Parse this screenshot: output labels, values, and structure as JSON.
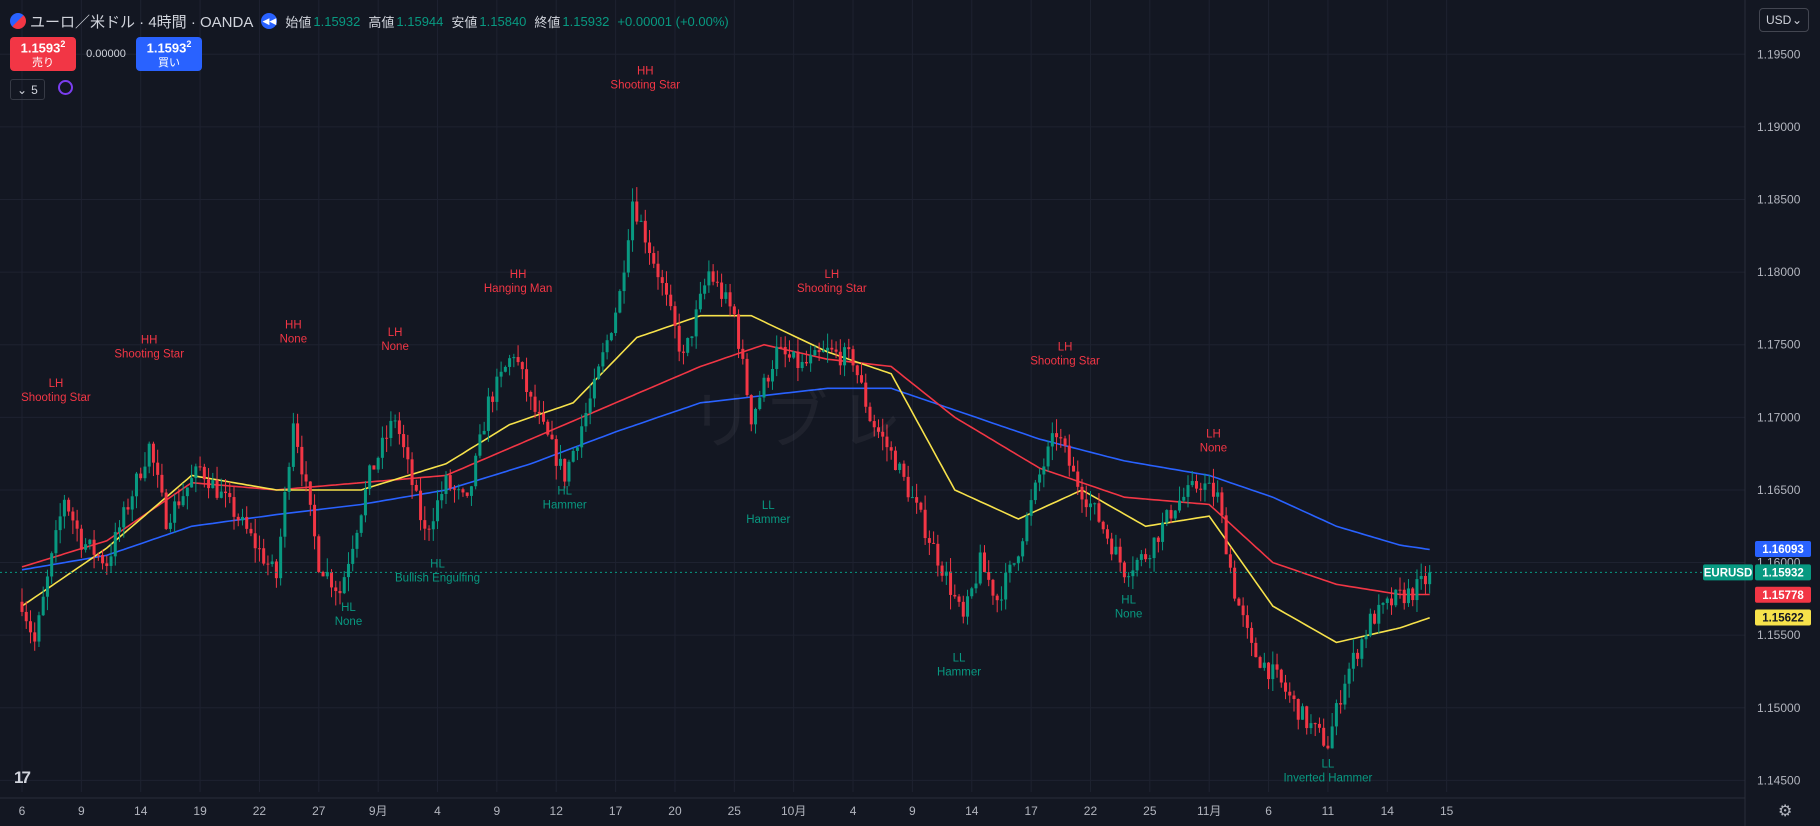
{
  "legend": {
    "title": "ユーロ／米ドル · 4時間 · OANDA",
    "open_label": "始値",
    "open": "1.15932",
    "high_label": "高値",
    "high": "1.15944",
    "low_label": "安値",
    "low": "1.15840",
    "close_label": "終値",
    "close": "1.15932",
    "change": "+0.00001 (+0.00%)"
  },
  "trade": {
    "sell_price": "1.1593",
    "sell_sup": "2",
    "sell_label": "売り",
    "spread": "0.00000",
    "buy_price": "1.1593",
    "buy_sup": "2",
    "buy_label": "買い"
  },
  "indicators_toggle": "5",
  "currency": "USD",
  "watermark": "リブレ",
  "logo": "17",
  "colors": {
    "up": "#089981",
    "down": "#f23645",
    "ma_fast": "#f7e24b",
    "ma_mid": "#f23645",
    "ma_slow": "#2962ff",
    "bg": "#131722",
    "grid": "#1e2230"
  },
  "chart_data": {
    "type": "candlestick",
    "symbol": "EURUSD",
    "ylim": [
      1.1442,
      1.1975
    ],
    "y_ticks": [
      "1.19500",
      "1.19000",
      "1.18500",
      "1.18000",
      "1.17500",
      "1.17000",
      "1.16500",
      "1.16000",
      "1.15500",
      "1.15000",
      "1.14500"
    ],
    "y_tick_values": [
      1.195,
      1.19,
      1.185,
      1.18,
      1.175,
      1.17,
      1.165,
      1.16,
      1.155,
      1.15,
      1.145
    ],
    "x_ticks": [
      "6",
      "9",
      "14",
      "19",
      "22",
      "27",
      "9月",
      "4",
      "9",
      "12",
      "17",
      "20",
      "25",
      "10月",
      "4",
      "9",
      "14",
      "17",
      "22",
      "25",
      "11月",
      "6",
      "11",
      "14",
      "15"
    ],
    "x_tick_index": [
      0,
      14,
      28,
      42,
      56,
      70,
      84,
      98,
      112,
      126,
      140,
      154,
      168,
      182,
      196,
      210,
      224,
      238,
      252,
      266,
      280,
      294,
      308,
      322,
      336
    ],
    "price_anchors": [
      [
        0,
        1.1573
      ],
      [
        3,
        1.1545
      ],
      [
        10,
        1.1645
      ],
      [
        14,
        1.1615
      ],
      [
        20,
        1.16
      ],
      [
        30,
        1.168
      ],
      [
        34,
        1.163
      ],
      [
        42,
        1.1665
      ],
      [
        50,
        1.1635
      ],
      [
        60,
        1.159
      ],
      [
        64,
        1.17
      ],
      [
        70,
        1.16
      ],
      [
        75,
        1.158
      ],
      [
        82,
        1.166
      ],
      [
        88,
        1.17
      ],
      [
        95,
        1.162
      ],
      [
        100,
        1.1655
      ],
      [
        105,
        1.164
      ],
      [
        110,
        1.171
      ],
      [
        116,
        1.1745
      ],
      [
        120,
        1.171
      ],
      [
        128,
        1.166
      ],
      [
        135,
        1.172
      ],
      [
        141,
        1.1785
      ],
      [
        144,
        1.185
      ],
      [
        150,
        1.18
      ],
      [
        156,
        1.174
      ],
      [
        162,
        1.18
      ],
      [
        168,
        1.177
      ],
      [
        172,
        1.17
      ],
      [
        178,
        1.1745
      ],
      [
        184,
        1.1735
      ],
      [
        190,
        1.1745
      ],
      [
        196,
        1.174
      ],
      [
        200,
        1.17
      ],
      [
        206,
        1.167
      ],
      [
        212,
        1.163
      ],
      [
        218,
        1.159
      ],
      [
        222,
        1.156
      ],
      [
        226,
        1.16
      ],
      [
        230,
        1.1575
      ],
      [
        234,
        1.16
      ],
      [
        240,
        1.166
      ],
      [
        244,
        1.169
      ],
      [
        248,
        1.166
      ],
      [
        254,
        1.163
      ],
      [
        260,
        1.1595
      ],
      [
        265,
        1.1605
      ],
      [
        272,
        1.164
      ],
      [
        278,
        1.1655
      ],
      [
        282,
        1.1645
      ],
      [
        286,
        1.158
      ],
      [
        290,
        1.154
      ],
      [
        296,
        1.152
      ],
      [
        303,
        1.149
      ],
      [
        308,
        1.1475
      ],
      [
        312,
        1.152
      ],
      [
        318,
        1.156
      ],
      [
        324,
        1.1575
      ],
      [
        328,
        1.158
      ],
      [
        332,
        1.159
      ]
    ],
    "ma_fast_anchors": [
      [
        0,
        1.157
      ],
      [
        20,
        1.161
      ],
      [
        40,
        1.166
      ],
      [
        60,
        1.165
      ],
      [
        80,
        1.165
      ],
      [
        100,
        1.1668
      ],
      [
        115,
        1.1695
      ],
      [
        130,
        1.171
      ],
      [
        145,
        1.1755
      ],
      [
        160,
        1.177
      ],
      [
        172,
        1.177
      ],
      [
        190,
        1.1745
      ],
      [
        205,
        1.173
      ],
      [
        220,
        1.165
      ],
      [
        235,
        1.163
      ],
      [
        250,
        1.165
      ],
      [
        265,
        1.1625
      ],
      [
        280,
        1.1632
      ],
      [
        295,
        1.157
      ],
      [
        310,
        1.1545
      ],
      [
        325,
        1.1555
      ],
      [
        332,
        1.1562
      ]
    ],
    "ma_mid_anchors": [
      [
        0,
        1.1597
      ],
      [
        20,
        1.1615
      ],
      [
        40,
        1.1655
      ],
      [
        60,
        1.165
      ],
      [
        80,
        1.1655
      ],
      [
        100,
        1.166
      ],
      [
        120,
        1.1685
      ],
      [
        140,
        1.171
      ],
      [
        160,
        1.1735
      ],
      [
        175,
        1.175
      ],
      [
        190,
        1.174
      ],
      [
        205,
        1.1735
      ],
      [
        220,
        1.17
      ],
      [
        240,
        1.1665
      ],
      [
        260,
        1.1645
      ],
      [
        280,
        1.164
      ],
      [
        295,
        1.16
      ],
      [
        310,
        1.1585
      ],
      [
        325,
        1.1578
      ],
      [
        332,
        1.1578
      ]
    ],
    "ma_slow_anchors": [
      [
        0,
        1.1595
      ],
      [
        20,
        1.1605
      ],
      [
        40,
        1.1625
      ],
      [
        60,
        1.1633
      ],
      [
        80,
        1.164
      ],
      [
        100,
        1.165
      ],
      [
        120,
        1.1668
      ],
      [
        140,
        1.169
      ],
      [
        160,
        1.171
      ],
      [
        175,
        1.1715
      ],
      [
        190,
        1.172
      ],
      [
        205,
        1.172
      ],
      [
        220,
        1.1705
      ],
      [
        240,
        1.1685
      ],
      [
        260,
        1.167
      ],
      [
        280,
        1.166
      ],
      [
        295,
        1.1645
      ],
      [
        310,
        1.1625
      ],
      [
        325,
        1.1612
      ],
      [
        332,
        1.1609
      ]
    ],
    "current_price": "1.15932",
    "current_value": 1.15932,
    "price_labels": [
      {
        "text": "1.16093",
        "value": 1.16093,
        "color": "#2962ff"
      },
      {
        "text": "EURUSD",
        "value": 1.15932,
        "color": "#089981"
      },
      {
        "text": "1.15932",
        "value": 1.15932,
        "color": "#089981"
      },
      {
        "text": "1.15778",
        "value": 1.15778,
        "color": "#f23645"
      },
      {
        "text": "1.15622",
        "value": 1.15622,
        "color": "#f7e24b"
      }
    ],
    "annotations": [
      {
        "index": 8,
        "value": 1.171,
        "label": "LH",
        "pattern": "Shooting Star",
        "kind": "high"
      },
      {
        "index": 30,
        "value": 1.174,
        "label": "HH",
        "pattern": "Shooting Star",
        "kind": "high"
      },
      {
        "index": 64,
        "value": 1.175,
        "label": "HH",
        "pattern": "None",
        "kind": "high"
      },
      {
        "index": 88,
        "value": 1.1745,
        "label": "LH",
        "pattern": "None",
        "kind": "high"
      },
      {
        "index": 117,
        "value": 1.1785,
        "label": "HH",
        "pattern": "Hanging Man",
        "kind": "high"
      },
      {
        "index": 147,
        "value": 1.1925,
        "label": "HH",
        "pattern": "Shooting Star",
        "kind": "high"
      },
      {
        "index": 191,
        "value": 1.1785,
        "label": "LH",
        "pattern": "Shooting Star",
        "kind": "high"
      },
      {
        "index": 246,
        "value": 1.1735,
        "label": "LH",
        "pattern": "Shooting Star",
        "kind": "high"
      },
      {
        "index": 281,
        "value": 1.1675,
        "label": "LH",
        "pattern": "None",
        "kind": "high"
      },
      {
        "index": 77,
        "value": 1.1575,
        "label": "HL",
        "pattern": "None",
        "kind": "low"
      },
      {
        "index": 98,
        "value": 1.1605,
        "label": "HL",
        "pattern": "Bullish Engulfing",
        "kind": "low"
      },
      {
        "index": 128,
        "value": 1.1655,
        "label": "HL",
        "pattern": "Hammer",
        "kind": "low"
      },
      {
        "index": 176,
        "value": 1.1645,
        "label": "LL",
        "pattern": "Hammer",
        "kind": "low"
      },
      {
        "index": 221,
        "value": 1.154,
        "label": "LL",
        "pattern": "Hammer",
        "kind": "low"
      },
      {
        "index": 261,
        "value": 1.158,
        "label": "HL",
        "pattern": "None",
        "kind": "low"
      },
      {
        "index": 308,
        "value": 1.1467,
        "label": "LL",
        "pattern": "Inverted Hammer",
        "kind": "low"
      }
    ]
  }
}
